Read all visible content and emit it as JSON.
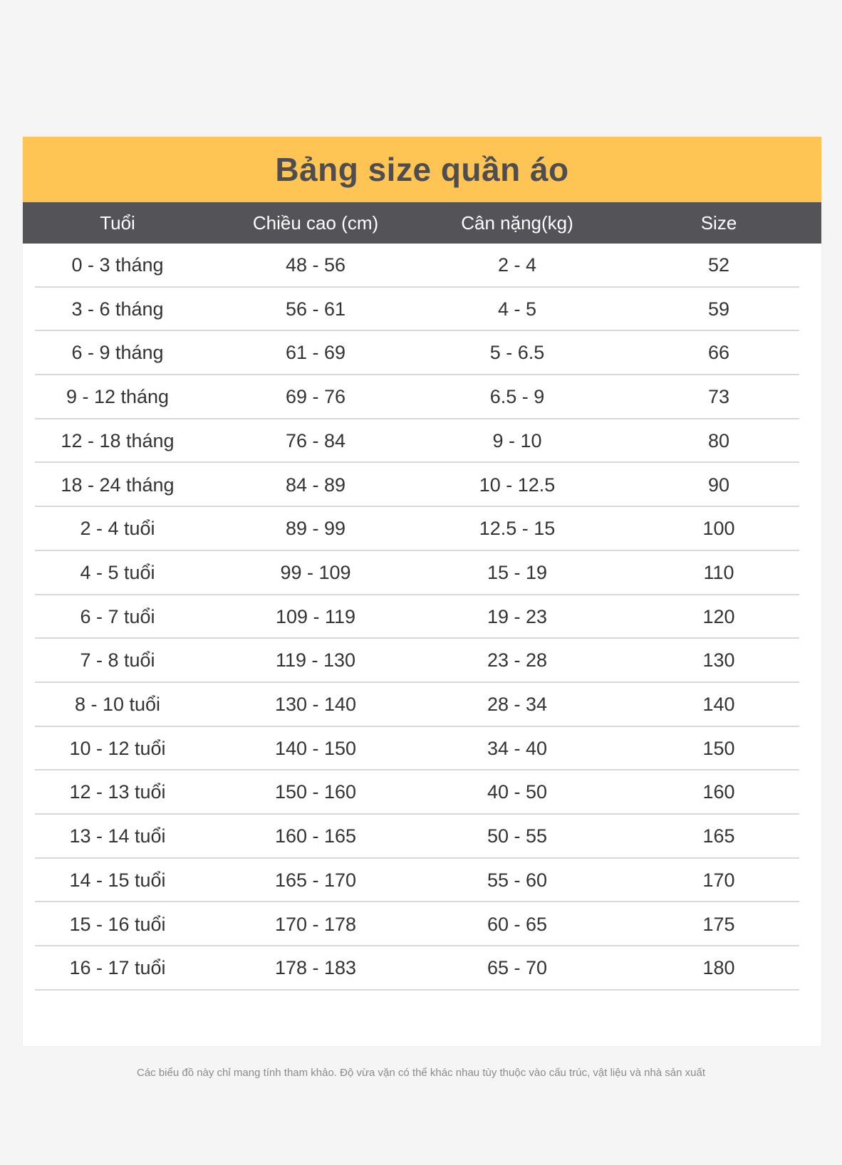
{
  "title": "Bảng size quần áo",
  "colors": {
    "title_bar": "#fec555",
    "header_bar": "#545357",
    "background": "#f5f5f5"
  },
  "headers": [
    "Tuổi",
    "Chiều cao (cm)",
    "Cân nặng(kg)",
    "Size"
  ],
  "rows": [
    [
      "0 - 3 tháng",
      "48 - 56",
      "2 - 4",
      "52"
    ],
    [
      "3 - 6 tháng",
      "56 - 61",
      "4 - 5",
      "59"
    ],
    [
      "6 - 9 tháng",
      "61 - 69",
      "5 - 6.5",
      "66"
    ],
    [
      "9 - 12 tháng",
      "69 - 76",
      "6.5 - 9",
      "73"
    ],
    [
      "12 - 18 tháng",
      "76 - 84",
      "9 - 10",
      "80"
    ],
    [
      "18 - 24 tháng",
      "84 - 89",
      "10 - 12.5",
      "90"
    ],
    [
      "2 - 4 tuổi",
      "89 - 99",
      "12.5 - 15",
      "100"
    ],
    [
      "4 - 5 tuổi",
      "99 - 109",
      "15 - 19",
      "110"
    ],
    [
      "6 - 7 tuổi",
      "109 - 119",
      "19 - 23",
      "120"
    ],
    [
      "7 - 8 tuổi",
      "119 - 130",
      "23 - 28",
      "130"
    ],
    [
      "8 - 10 tuổi",
      "130 - 140",
      "28 - 34",
      "140"
    ],
    [
      "10 - 12 tuổi",
      "140 - 150",
      "34 - 40",
      "150"
    ],
    [
      "12 - 13 tuổi",
      "150 - 160",
      "40 - 50",
      "160"
    ],
    [
      "13 - 14 tuổi",
      "160 - 165",
      "50 - 55",
      "165"
    ],
    [
      "14 - 15 tuổi",
      "165 - 170",
      "55 - 60",
      "170"
    ],
    [
      "15 - 16 tuổi",
      "170 - 178",
      "60 - 65",
      "175"
    ],
    [
      "16 - 17 tuổi",
      "178 - 183",
      "65 - 70",
      "180"
    ]
  ],
  "footer": "Các biểu đồ này chỉ mang tính tham khảo. Độ vừa vặn có thể khác nhau tùy thuộc vào cấu trúc, vật liệu và nhà sản xuất"
}
